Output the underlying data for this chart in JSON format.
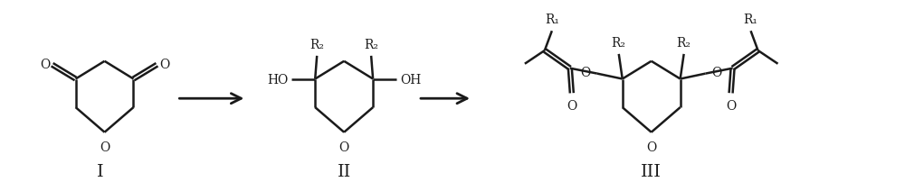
{
  "background_color": "#ffffff",
  "line_color": "#1a1a1a",
  "line_width": 1.8,
  "arrow_color": "#1a1a1a",
  "label_I": "I",
  "label_II": "II",
  "label_III": "III",
  "label_R1": "R₁",
  "label_R2": "R₂",
  "label_HO": "HO",
  "label_OH": "OH",
  "label_O": "O",
  "font_size_roman": 14,
  "font_size_label": 10,
  "figsize": [
    10.0,
    2.03
  ],
  "dpi": 100
}
